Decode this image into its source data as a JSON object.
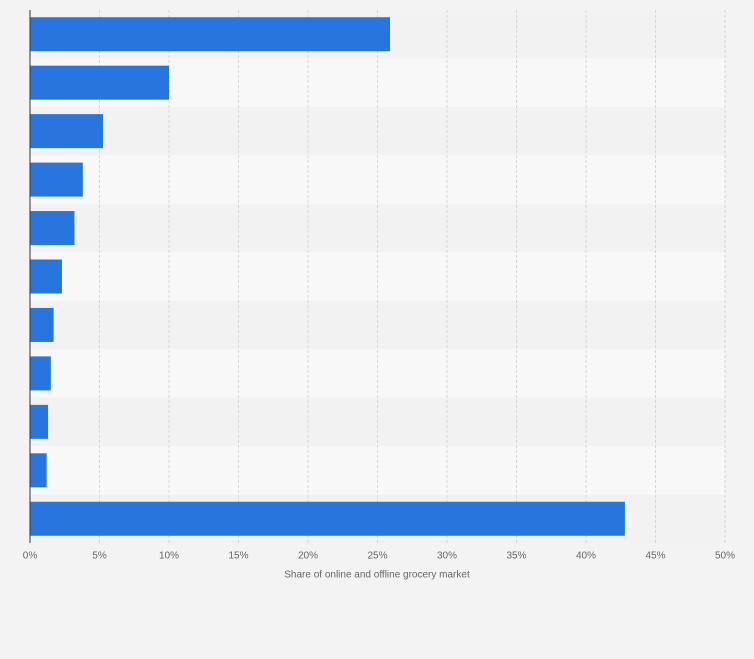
{
  "chart_data": {
    "type": "bar",
    "orientation": "horizontal",
    "categories": [
      null,
      null,
      null,
      null,
      null,
      null,
      null,
      null,
      null,
      null,
      null
    ],
    "values": [
      25.9,
      10.0,
      5.25,
      3.8,
      3.2,
      2.3,
      1.7,
      1.5,
      1.3,
      1.2,
      42.8
    ],
    "color": "#2876dd",
    "xlabel": "Share of online and offline grocery market",
    "xlim": [
      0,
      50
    ],
    "xticks": [
      {
        "value": 0,
        "label": "0%"
      },
      {
        "value": 5,
        "label": "5%"
      },
      {
        "value": 10,
        "label": "10%"
      },
      {
        "value": 15,
        "label": "15%"
      },
      {
        "value": 20,
        "label": "20%"
      },
      {
        "value": 25,
        "label": "25%"
      },
      {
        "value": 30,
        "label": "30%"
      },
      {
        "value": 35,
        "label": "35%"
      },
      {
        "value": 40,
        "label": "40%"
      },
      {
        "value": 45,
        "label": "45%"
      },
      {
        "value": 50,
        "label": "50%"
      }
    ],
    "grid": true
  }
}
